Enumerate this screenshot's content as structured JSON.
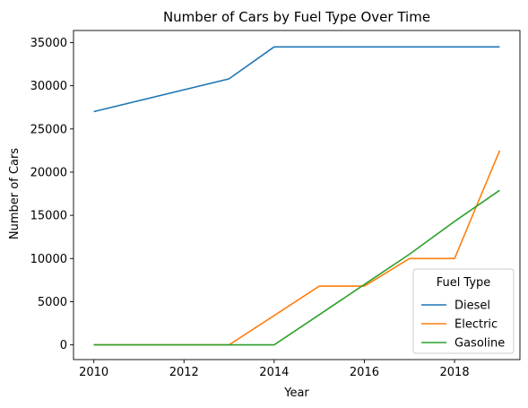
{
  "chart_data": {
    "type": "line",
    "title": "Number of Cars by Fuel Type Over Time",
    "xlabel": "Year",
    "ylabel": "Number of Cars",
    "x": [
      2010,
      2013,
      2014,
      2015,
      2016,
      2017,
      2018,
      2019
    ],
    "xlim": [
      2009.55,
      2019.45
    ],
    "ylim": [
      -1700,
      36400
    ],
    "xticks": [
      2010,
      2012,
      2014,
      2016,
      2018
    ],
    "yticks": [
      0,
      5000,
      10000,
      15000,
      20000,
      25000,
      30000,
      35000
    ],
    "grid": false,
    "legend": {
      "title": "Fuel Type",
      "placement": "lower right"
    },
    "series": [
      {
        "name": "Diesel",
        "color": "#1f77b4",
        "points": [
          [
            2010,
            27000
          ],
          [
            2013,
            30800
          ],
          [
            2014,
            34500
          ],
          [
            2015,
            34500
          ],
          [
            2016,
            34500
          ],
          [
            2017,
            34500
          ],
          [
            2018,
            34500
          ],
          [
            2019,
            34500
          ]
        ]
      },
      {
        "name": "Electric",
        "color": "#ff7f0e",
        "points": [
          [
            2010,
            0
          ],
          [
            2013,
            0
          ],
          [
            2014,
            3400
          ],
          [
            2015,
            6800
          ],
          [
            2016,
            6800
          ],
          [
            2017,
            10000
          ],
          [
            2018,
            10000
          ],
          [
            2019,
            22500
          ]
        ]
      },
      {
        "name": "Gasoline",
        "color": "#2ca02c",
        "points": [
          [
            2010,
            0
          ],
          [
            2013,
            0
          ],
          [
            2014,
            0
          ],
          [
            2015,
            3500
          ],
          [
            2016,
            7000
          ],
          [
            2017,
            10500
          ],
          [
            2018,
            14300
          ],
          [
            2019,
            17900
          ]
        ]
      }
    ]
  }
}
